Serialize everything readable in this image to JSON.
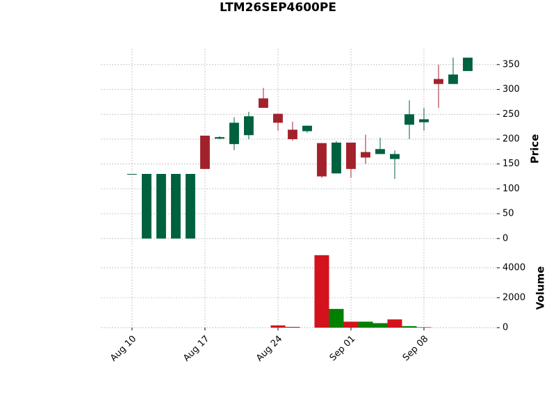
{
  "chart_data": [
    {
      "type": "candlestick",
      "title": "LTM26SEP4600PE",
      "ylabel": "Price",
      "categories": [
        "Aug 10",
        null,
        null,
        null,
        null,
        "Aug 17",
        null,
        null,
        null,
        null,
        "Aug 24",
        null,
        null,
        null,
        null,
        "Sep 01",
        null,
        null,
        null,
        null,
        "Sep 08",
        null,
        null,
        null
      ],
      "open": [
        130,
        0,
        0,
        0,
        0,
        207,
        201,
        190,
        208,
        282,
        251,
        219,
        216,
        192,
        131,
        193,
        174,
        170,
        160,
        229,
        234,
        321,
        311,
        337
      ],
      "high": [
        130,
        130,
        130,
        130,
        130,
        207,
        206,
        244,
        255,
        303,
        251,
        235,
        227,
        192,
        196,
        193,
        209,
        203,
        177,
        278,
        263,
        350,
        364,
        364
      ],
      "low": [
        130,
        0,
        0,
        0,
        0,
        140,
        200,
        178,
        200,
        263,
        217,
        197,
        213,
        122,
        131,
        122,
        150,
        170,
        120,
        200,
        217,
        263,
        311,
        337
      ],
      "close": [
        130,
        130,
        130,
        130,
        130,
        140,
        204,
        233,
        246,
        263,
        233,
        200,
        227,
        125,
        193,
        140,
        163,
        180,
        170,
        250,
        240,
        311,
        330,
        364
      ],
      "xlim": [
        -2.14,
        25
      ],
      "ylim": [
        -17,
        382
      ],
      "yticks": [
        0,
        50,
        100,
        150,
        200,
        250,
        300,
        350
      ],
      "grid": true,
      "up_color": "#00613e",
      "down_color": "#a3212b"
    },
    {
      "type": "bar",
      "ylabel": "Volume",
      "values": [
        0,
        0,
        0,
        0,
        0,
        0,
        0,
        0,
        0,
        0,
        150,
        50,
        0,
        4840,
        1250,
        400,
        400,
        300,
        550,
        100,
        30,
        0,
        0,
        0
      ],
      "ylim": [
        0,
        5250
      ],
      "yticks": [
        0,
        2000,
        4000
      ],
      "grid": true,
      "up_color": "#008000",
      "down_color": "#d2121d"
    }
  ]
}
